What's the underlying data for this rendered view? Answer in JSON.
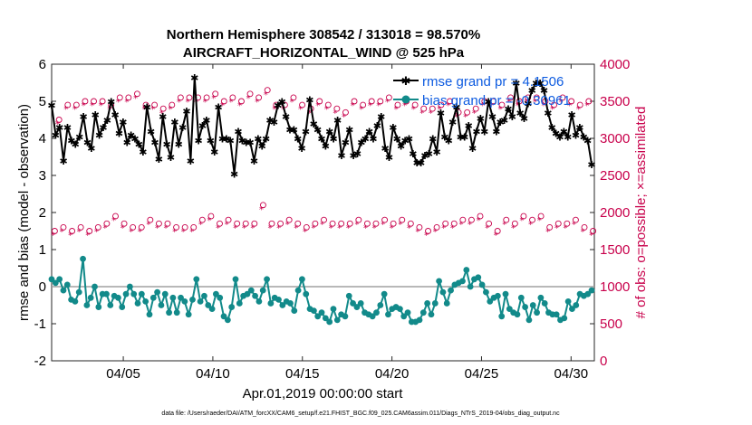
{
  "chart_data": {
    "type": "line",
    "title": "Northern Hemisphere 308542 / 313018 = 98.570%",
    "subtitle": "AIRCRAFT_HORIZONTAL_WIND @ 525 hPa",
    "ylabel": "rmse and bias (model - observation)",
    "y2label": "# of obs: o=possible; ×=assimilated",
    "xlabel": "Apr.01,2019 00:00:00 start",
    "footnote": "data file: /Users/raeder/DAI/ATM_forcXX/CAM6_setup/f.e21.FHIST_BGC.f09_025.CAM6assim.011/Diags_NTrS_2019-04/obs_diag_output.nc",
    "ylim": [
      -2,
      6
    ],
    "y2lim": [
      0,
      4000
    ],
    "xlim": [
      1,
      31.3
    ],
    "yticks": [
      -2,
      -1,
      0,
      1,
      2,
      3,
      4,
      5,
      6
    ],
    "y2ticks": [
      0,
      500,
      1000,
      1500,
      2000,
      2500,
      3000,
      3500,
      4000
    ],
    "yticklabels": [
      "-2",
      "-1",
      "0",
      "1",
      "2",
      "3",
      "4",
      "5",
      "6"
    ],
    "y2ticklabels": [
      "0",
      "500",
      "1000",
      "1500",
      "2000",
      "2500",
      "3000",
      "3500",
      "4000"
    ],
    "xticks": [
      5,
      10,
      15,
      20,
      25,
      30
    ],
    "xticklabels": [
      "04/05",
      "04/10",
      "04/15",
      "04/20",
      "04/25",
      "04/30"
    ],
    "legend": [
      {
        "label": "rmse grand pr = 4.1506",
        "color": "#000000"
      },
      {
        "label": "bias grand pr = -0.30961",
        "color": "#128a8a"
      }
    ],
    "series": [
      {
        "name": "rmse",
        "color": "#000000",
        "values": [
          4.9,
          4.1,
          4.3,
          3.4,
          4.3,
          3.95,
          3.85,
          4.05,
          4.6,
          3.9,
          3.75,
          4.65,
          4.1,
          4.3,
          4.5,
          5.0,
          4.65,
          4.15,
          4.45,
          3.9,
          4.1,
          4.0,
          3.85,
          3.65,
          4.85,
          4.2,
          3.9,
          3.45,
          4.6,
          3.85,
          3.5,
          4.45,
          3.85,
          4.3,
          4.75,
          3.4,
          5.65,
          3.95,
          4.35,
          4.5,
          3.95,
          3.65,
          4.85,
          4.0,
          4.0,
          3.95,
          3.05,
          4.2,
          3.95,
          3.9,
          3.9,
          3.4,
          4.0,
          3.8,
          4.0,
          4.5,
          4.45,
          4.9,
          5.0,
          4.6,
          4.25,
          4.25,
          4.0,
          3.75,
          4.2,
          5.05,
          4.4,
          4.25,
          4.0,
          3.8,
          4.2,
          4.0,
          4.5,
          3.55,
          3.9,
          4.25,
          3.55,
          3.6,
          3.9,
          4.0,
          4.2,
          4.0,
          4.35,
          4.6,
          3.75,
          3.5,
          4.3,
          4.0,
          3.8,
          3.95,
          4.0,
          3.6,
          3.35,
          3.35,
          3.55,
          3.6,
          4.0,
          3.65,
          4.7,
          4.05,
          3.95,
          4.45,
          4.85,
          4.05,
          4.05,
          4.35,
          3.75,
          4.2,
          4.55,
          4.2,
          5.0,
          4.6,
          4.2,
          4.45,
          4.5,
          4.8,
          4.6,
          5.5,
          4.7,
          4.55,
          4.95,
          5.3,
          5.5,
          5.5,
          5.3,
          4.7,
          4.3,
          4.15,
          4.05,
          4.2,
          4.05,
          4.65,
          4.1,
          4.3,
          4.05,
          3.95,
          3.3
        ],
        "marker": "asterisk"
      },
      {
        "name": "bias",
        "color": "#128a8a",
        "values": [
          0.2,
          0.1,
          0.2,
          -0.1,
          0.05,
          -0.35,
          -0.4,
          -0.15,
          0.75,
          -0.5,
          -0.3,
          0.0,
          -0.55,
          -0.2,
          -0.2,
          -0.5,
          -0.25,
          -0.3,
          -0.55,
          -0.2,
          0.0,
          -0.2,
          -0.45,
          -0.2,
          -0.4,
          -0.75,
          -0.3,
          -0.15,
          -0.5,
          -0.2,
          -0.7,
          -0.3,
          -0.7,
          -0.3,
          -0.4,
          -0.75,
          -0.35,
          0.2,
          -0.4,
          -0.25,
          -0.5,
          -0.6,
          -0.2,
          -0.3,
          -0.8,
          -0.9,
          -0.55,
          0.2,
          -0.45,
          -0.25,
          -0.2,
          -0.1,
          -0.25,
          -0.4,
          -0.1,
          0.2,
          -0.45,
          -0.3,
          -0.35,
          -0.5,
          -0.4,
          -0.45,
          -0.65,
          -0.1,
          0.2,
          -0.2,
          -0.6,
          -0.65,
          -0.8,
          -0.7,
          -0.85,
          -0.95,
          -0.6,
          -0.9,
          -0.75,
          -0.8,
          -0.25,
          -0.45,
          -0.55,
          -0.45,
          -0.7,
          -0.75,
          -0.8,
          -0.7,
          -0.5,
          -0.2,
          -0.75,
          -0.6,
          -0.55,
          -0.6,
          -0.8,
          -0.7,
          -0.95,
          -0.95,
          -0.9,
          -0.7,
          -0.45,
          -0.75,
          -0.45,
          0.15,
          -0.15,
          -0.45,
          -0.1,
          0.05,
          0.1,
          0.15,
          0.45,
          0.0,
          0.2,
          0.25,
          0.05,
          -0.15,
          -0.4,
          -0.3,
          -0.25,
          -0.8,
          -0.2,
          -0.6,
          -0.7,
          -0.75,
          -0.3,
          -0.55,
          -0.9,
          -0.5,
          -0.7,
          -0.3,
          -0.45,
          -0.7,
          -0.75,
          -0.75,
          -0.9,
          -0.85,
          -0.4,
          -0.6,
          -0.5,
          -0.2,
          -0.25,
          -0.2,
          -0.1
        ],
        "marker": "circle"
      }
    ],
    "obs_possible": [
      1750,
      3250,
      1800,
      3450,
      1750,
      3450,
      1800,
      3500,
      1750,
      3500,
      1800,
      3500,
      1850,
      3450,
      1950,
      3550,
      1850,
      3550,
      1800,
      3600,
      1800,
      3450,
      1900,
      3450,
      1850,
      3400,
      1850,
      3450,
      1800,
      3550,
      1800,
      3550,
      1800,
      3550,
      1900,
      3550,
      1950,
      3600,
      1850,
      3500,
      1900,
      3550,
      1850,
      3500,
      1850,
      3600,
      1850,
      3550,
      2100,
      3650,
      1850,
      3450,
      1850,
      3450,
      1900,
      3550,
      1850,
      3450,
      1800,
      3400,
      1850,
      3500,
      1900,
      3450,
      1850,
      3400,
      1850,
      3350,
      1850,
      3500,
      1900,
      3450,
      1850,
      3500,
      1850,
      3500,
      1900,
      3550,
      1850,
      3450,
      1900,
      3500,
      1850,
      3450,
      1800,
      3400,
      1750,
      3400,
      1800,
      3450,
      1850,
      3500,
      1850,
      3350,
      1900,
      3350,
      1900,
      3400,
      1950,
      3500,
      1850,
      3500,
      1750,
      3450,
      1900,
      3550,
      1850,
      3500,
      1950,
      3550,
      1900,
      3550,
      1950,
      3500,
      1800,
      3450,
      1850,
      3550,
      1850,
      3500,
      1900,
      3450,
      1800,
      3500,
      1750
    ],
    "obs_assimilated": [
      1700,
      3200,
      1750,
      3400,
      1700,
      3400,
      1750,
      3450,
      1700,
      3450,
      1750,
      3450,
      1800,
      3400,
      1900,
      3500,
      1800,
      3500,
      1750,
      3550,
      1750,
      3400,
      1850,
      3400,
      1800,
      3350,
      1800,
      3400,
      1750,
      3500,
      1750,
      3500,
      1750,
      3500,
      1850,
      3500,
      1900,
      3550,
      1800,
      3450,
      1850,
      3500,
      1800,
      3450,
      1800,
      3550,
      1800,
      3500,
      2050,
      3600,
      1800,
      3400,
      1800,
      3400,
      1850,
      3500,
      1800,
      3400,
      1750,
      3350,
      1800,
      3450,
      1850,
      3400,
      1800,
      3350,
      1800,
      3300,
      1800,
      3450,
      1850,
      3400,
      1800,
      3450,
      1800,
      3450,
      1850,
      3500,
      1800,
      3400,
      1850,
      3450,
      1800,
      3400,
      1750,
      3350,
      1700,
      3350,
      1750,
      3400,
      1800,
      3450,
      1800,
      3300,
      1850,
      3300,
      1850,
      3350,
      1900,
      3450,
      1800,
      3450,
      1700,
      3400,
      1850,
      3500,
      1800,
      3450,
      1900,
      3500,
      1850,
      3500,
      1900,
      3450,
      1750,
      3400,
      1800,
      3500,
      1800,
      3450,
      1850,
      3400,
      1750,
      3450,
      1700
    ]
  }
}
